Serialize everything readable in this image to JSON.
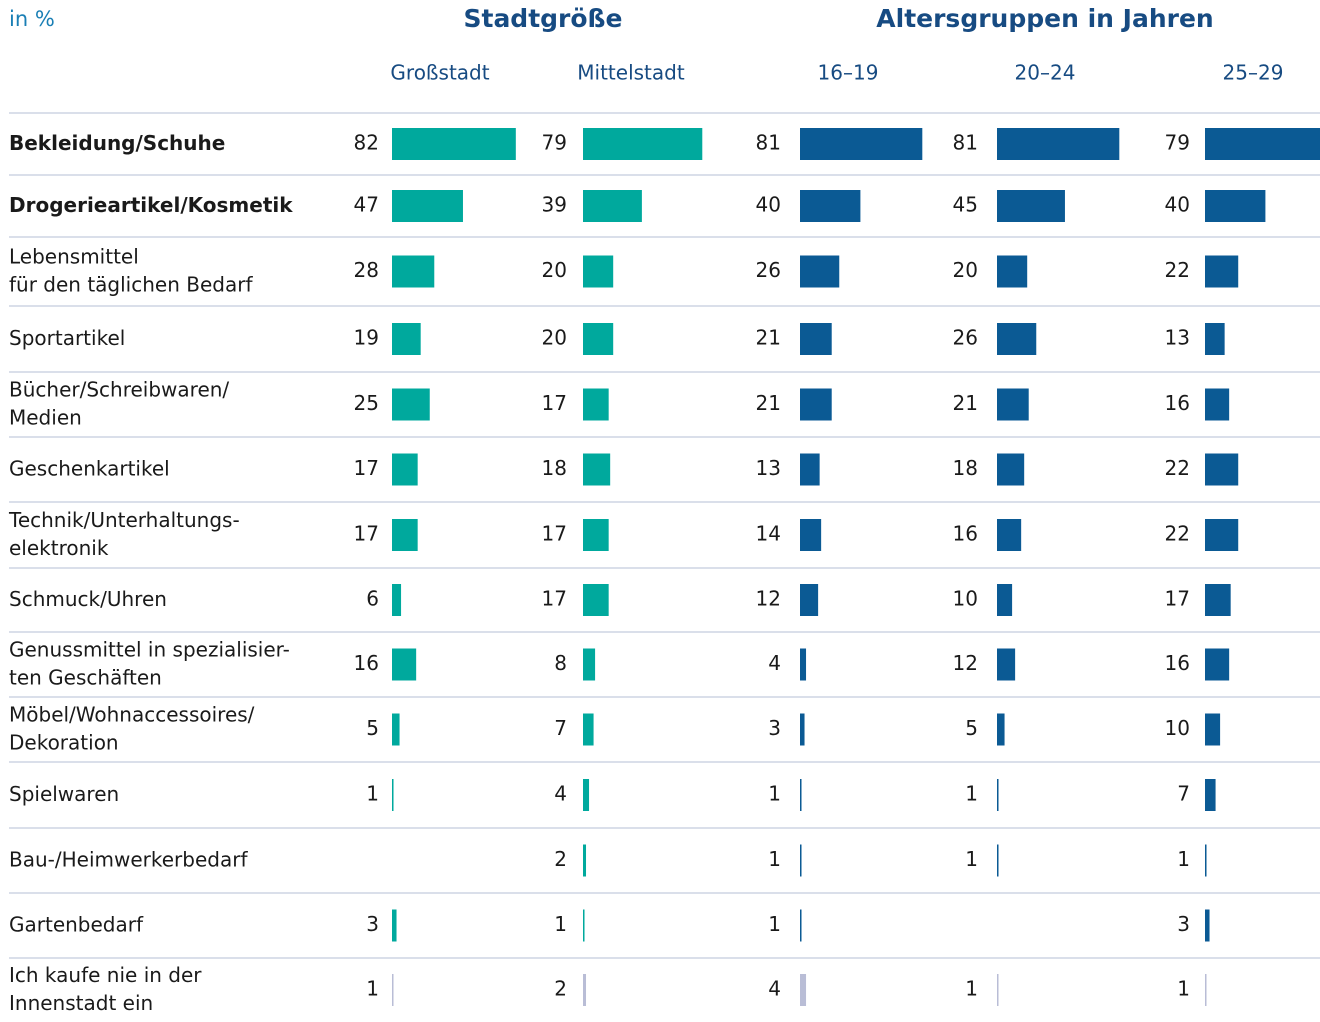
{
  "chart_data": {
    "type": "bar",
    "title": "in %",
    "categories": [
      "Bekleidung/Schuhe",
      "Drogerieartikel/Kosmetik",
      "Lebensmittel\nfür den täglichen Bedarf",
      "Sportartikel",
      "Bücher/Schreibwaren/\nMedien",
      "Geschenkartikel",
      "Technik/Unterhaltungs-\nelektronik",
      "Schmuck/Uhren",
      "Genussmittel in spezialisier-\nten Geschäften",
      "Möbel/Wohnaccessoires/\nDekoration",
      "Spielwaren",
      "Bau-/Heimwerkerbedarf",
      "Gartenbedarf",
      "Ich kaufe nie in der\nInnenstadt ein"
    ],
    "bold_rows": [
      0,
      1
    ],
    "other_rows": [
      13
    ],
    "other_color": "#b9bdd6",
    "xlim": [
      0,
      100
    ],
    "groups": [
      {
        "name": "Stadtgröße",
        "series": [
          {
            "name": "Großstadt",
            "color": "#00a99d",
            "values": [
              82,
              47,
              28,
              19,
              25,
              17,
              17,
              6,
              16,
              5,
              1,
              null,
              3,
              1
            ]
          },
          {
            "name": "Mittelstadt",
            "color": "#00a99d",
            "values": [
              79,
              39,
              20,
              20,
              17,
              18,
              17,
              17,
              8,
              7,
              4,
              2,
              1,
              2
            ]
          }
        ]
      },
      {
        "name": "Altersgruppen in Jahren",
        "series": [
          {
            "name": "16–19",
            "color": "#0b5a94",
            "values": [
              81,
              40,
              26,
              21,
              21,
              13,
              14,
              12,
              4,
              3,
              1,
              1,
              1,
              4
            ]
          },
          {
            "name": "20–24",
            "color": "#0b5a94",
            "values": [
              81,
              45,
              20,
              26,
              21,
              18,
              16,
              10,
              12,
              5,
              1,
              1,
              null,
              1
            ]
          },
          {
            "name": "25–29",
            "color": "#0b5a94",
            "values": [
              79,
              40,
              22,
              13,
              16,
              22,
              22,
              17,
              16,
              10,
              7,
              1,
              3,
              1
            ]
          }
        ]
      }
    ]
  }
}
